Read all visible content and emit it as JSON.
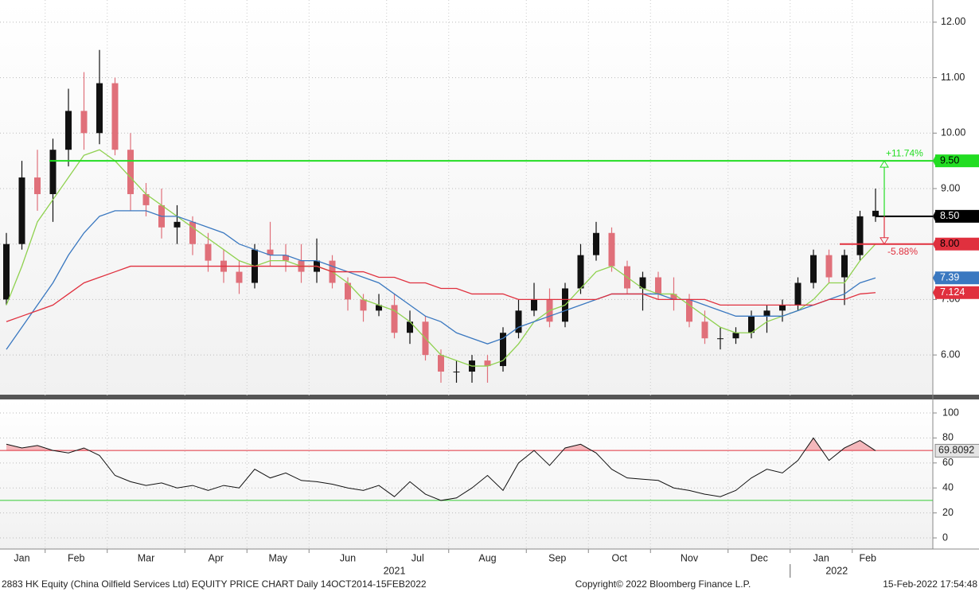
{
  "chart_data": {
    "type": "candlestick",
    "footer": "2883 HK Equity (China Oilfield Services Ltd) EQUITY PRICE CHART  Daily 14OCT2014-15FEB2022",
    "copyright": "Copyright© 2022 Bloomberg Finance L.P.",
    "timestamp": "15-Feb-2022 17:54:48",
    "years": [
      "2021",
      "2022"
    ],
    "up_color": "#111111",
    "down_color": "#e0707a",
    "grid": true,
    "ylim": [
      5.27,
      12.4
    ],
    "yticks": [
      {
        "value": 6,
        "label": "6.00"
      },
      {
        "value": 7,
        "label": "7.00"
      },
      {
        "value": 8,
        "label": "8.00"
      },
      {
        "value": 9,
        "label": "9.00"
      },
      {
        "value": 10,
        "label": "10.00"
      },
      {
        "value": 11,
        "label": "11.00"
      },
      {
        "value": 12,
        "label": "12.00"
      }
    ],
    "months": [
      {
        "label": "Jan",
        "ohlc": [
          [
            7.0,
            8.2,
            6.9,
            8.0
          ],
          [
            8.0,
            9.5,
            7.9,
            9.2
          ],
          [
            9.2,
            9.7,
            8.6,
            8.9
          ]
        ]
      },
      {
        "label": "Feb",
        "ohlc": [
          [
            8.9,
            9.9,
            8.4,
            9.7
          ],
          [
            9.7,
            10.8,
            9.4,
            10.4
          ],
          [
            10.4,
            11.1,
            9.7,
            10.0
          ],
          [
            10.0,
            11.5,
            9.8,
            10.9
          ]
        ]
      },
      {
        "label": "Mar",
        "ohlc": [
          [
            10.9,
            11.0,
            9.6,
            9.7
          ],
          [
            9.7,
            10.0,
            8.6,
            8.9
          ],
          [
            8.9,
            9.1,
            8.5,
            8.7
          ],
          [
            8.7,
            9.0,
            8.1,
            8.3
          ],
          [
            8.3,
            8.7,
            8.0,
            8.4
          ]
        ]
      },
      {
        "label": "Apr",
        "ohlc": [
          [
            8.4,
            8.5,
            7.8,
            8.0
          ],
          [
            8.0,
            8.2,
            7.5,
            7.7
          ],
          [
            7.7,
            7.9,
            7.3,
            7.5
          ],
          [
            7.5,
            7.7,
            7.1,
            7.3
          ]
        ]
      },
      {
        "label": "May",
        "ohlc": [
          [
            7.3,
            8.0,
            7.2,
            7.9
          ],
          [
            7.9,
            8.4,
            7.6,
            7.8
          ],
          [
            7.8,
            8.0,
            7.5,
            7.7
          ],
          [
            7.7,
            8.0,
            7.3,
            7.5
          ]
        ]
      },
      {
        "label": "Jun",
        "ohlc": [
          [
            7.5,
            8.1,
            7.3,
            7.7
          ],
          [
            7.7,
            7.8,
            7.2,
            7.3
          ],
          [
            7.3,
            7.4,
            6.8,
            7.0
          ],
          [
            7.0,
            7.1,
            6.6,
            6.8
          ],
          [
            6.8,
            7.1,
            6.7,
            6.9
          ]
        ]
      },
      {
        "label": "Jul",
        "ohlc": [
          [
            6.9,
            7.1,
            6.3,
            6.4
          ],
          [
            6.4,
            6.8,
            6.2,
            6.6
          ],
          [
            6.6,
            6.7,
            5.9,
            6.0
          ],
          [
            6.0,
            6.1,
            5.5,
            5.7
          ]
        ]
      },
      {
        "label": "Aug",
        "ohlc": [
          [
            5.7,
            5.9,
            5.5,
            5.7
          ],
          [
            5.7,
            6.0,
            5.5,
            5.9
          ],
          [
            5.9,
            6.0,
            5.5,
            5.8
          ],
          [
            5.8,
            6.5,
            5.7,
            6.4
          ],
          [
            6.4,
            7.0,
            6.3,
            6.8
          ]
        ]
      },
      {
        "label": "Sep",
        "ohlc": [
          [
            6.8,
            7.3,
            6.7,
            7.0
          ],
          [
            7.0,
            7.2,
            6.5,
            6.6
          ],
          [
            6.6,
            7.3,
            6.5,
            7.2
          ],
          [
            7.2,
            8.0,
            7.1,
            7.8
          ]
        ]
      },
      {
        "label": "Oct",
        "ohlc": [
          [
            7.8,
            8.4,
            7.7,
            8.2
          ],
          [
            8.2,
            8.3,
            7.5,
            7.6
          ],
          [
            7.6,
            7.7,
            7.1,
            7.2
          ],
          [
            7.2,
            7.5,
            6.8,
            7.4
          ]
        ]
      },
      {
        "label": "Nov",
        "ohlc": [
          [
            7.4,
            7.5,
            7.0,
            7.1
          ],
          [
            7.1,
            7.4,
            6.8,
            7.0
          ],
          [
            7.0,
            7.1,
            6.5,
            6.6
          ],
          [
            6.6,
            6.8,
            6.2,
            6.3
          ],
          [
            6.3,
            6.5,
            6.1,
            6.3
          ]
        ]
      },
      {
        "label": "Dec",
        "ohlc": [
          [
            6.3,
            6.5,
            6.2,
            6.4
          ],
          [
            6.4,
            6.8,
            6.3,
            6.7
          ],
          [
            6.7,
            6.9,
            6.4,
            6.8
          ],
          [
            6.8,
            7.0,
            6.6,
            6.9
          ]
        ]
      },
      {
        "label": "Jan",
        "ohlc": [
          [
            6.9,
            7.4,
            6.8,
            7.3
          ],
          [
            7.3,
            7.9,
            7.2,
            7.8
          ],
          [
            7.8,
            7.9,
            7.3,
            7.4
          ],
          [
            7.4,
            7.9,
            6.9,
            7.8
          ]
        ]
      },
      {
        "label": "Feb",
        "ohlc": [
          [
            7.8,
            8.6,
            7.7,
            8.5
          ],
          [
            8.5,
            9.0,
            8.4,
            8.6
          ]
        ]
      }
    ],
    "series": [
      {
        "color": "#8fd14f",
        "values": [
          6.9,
          7.6,
          8.4,
          8.8,
          9.2,
          9.6,
          9.7,
          9.5,
          9.2,
          8.9,
          8.7,
          8.5,
          8.3,
          8.1,
          7.9,
          7.7,
          7.6,
          7.7,
          7.7,
          7.6,
          7.6,
          7.5,
          7.3,
          7.0,
          6.9,
          6.8,
          6.6,
          6.3,
          6.0,
          5.9,
          5.8,
          5.8,
          5.9,
          6.2,
          6.6,
          6.8,
          6.9,
          7.2,
          7.5,
          7.6,
          7.4,
          7.2,
          7.1,
          7.1,
          6.9,
          6.7,
          6.5,
          6.4,
          6.4,
          6.6,
          6.7,
          6.8,
          7.0,
          7.3,
          7.3,
          7.7,
          8.0
        ]
      },
      {
        "color": "#3a78c0",
        "last_label": "7.39",
        "values": [
          6.1,
          6.5,
          6.9,
          7.3,
          7.8,
          8.2,
          8.5,
          8.6,
          8.6,
          8.6,
          8.5,
          8.5,
          8.4,
          8.3,
          8.2,
          8.0,
          7.9,
          7.8,
          7.8,
          7.7,
          7.7,
          7.6,
          7.5,
          7.4,
          7.3,
          7.1,
          6.9,
          6.7,
          6.6,
          6.4,
          6.3,
          6.2,
          6.3,
          6.5,
          6.6,
          6.7,
          6.8,
          6.9,
          7.0,
          7.1,
          7.1,
          7.1,
          7.1,
          7.0,
          7.0,
          6.9,
          6.8,
          6.7,
          6.7,
          6.7,
          6.7,
          6.8,
          6.9,
          7.0,
          7.1,
          7.3,
          7.39
        ]
      },
      {
        "color": "#e0303e",
        "last_label": "7.124",
        "values": [
          6.6,
          6.7,
          6.8,
          6.9,
          7.1,
          7.3,
          7.4,
          7.5,
          7.6,
          7.6,
          7.6,
          7.6,
          7.6,
          7.6,
          7.6,
          7.6,
          7.6,
          7.6,
          7.6,
          7.6,
          7.6,
          7.5,
          7.5,
          7.5,
          7.4,
          7.4,
          7.3,
          7.3,
          7.2,
          7.2,
          7.1,
          7.1,
          7.1,
          7.0,
          7.0,
          7.0,
          7.0,
          7.0,
          7.0,
          7.1,
          7.1,
          7.1,
          7.0,
          7.0,
          7.0,
          7.0,
          6.9,
          6.9,
          6.9,
          6.9,
          6.9,
          6.9,
          6.9,
          7.0,
          7.0,
          7.1,
          7.124
        ]
      }
    ],
    "levels": [
      {
        "value": 9.5,
        "label": "9.50",
        "color": "#22dd22"
      },
      {
        "value": 8.5,
        "label": "8.50",
        "color": "#000000"
      },
      {
        "value": 8.0,
        "label": "8.00",
        "color": "#e0303e"
      }
    ],
    "annotations": [
      "+11.74%",
      "-5.88%"
    ],
    "rsi": {
      "color": "#111111",
      "ylim": [
        -8.9,
        110.2
      ],
      "yticks": [
        0,
        20,
        40,
        60,
        80,
        100
      ],
      "last_label": "69.8092",
      "levels": [
        {
          "value": 70,
          "color": "#e0303e"
        },
        {
          "value": 30,
          "color": "#33cc33"
        }
      ],
      "values": [
        75,
        72,
        74,
        70,
        68,
        72,
        66,
        50,
        45,
        42,
        44,
        40,
        42,
        38,
        42,
        40,
        55,
        48,
        52,
        46,
        45,
        43,
        40,
        38,
        42,
        33,
        45,
        35,
        30,
        32,
        40,
        50,
        38,
        60,
        70,
        58,
        72,
        75,
        68,
        55,
        48,
        47,
        46,
        40,
        38,
        35,
        33,
        38,
        48,
        55,
        52,
        62,
        80,
        62,
        72,
        78,
        69.8092
      ]
    }
  }
}
